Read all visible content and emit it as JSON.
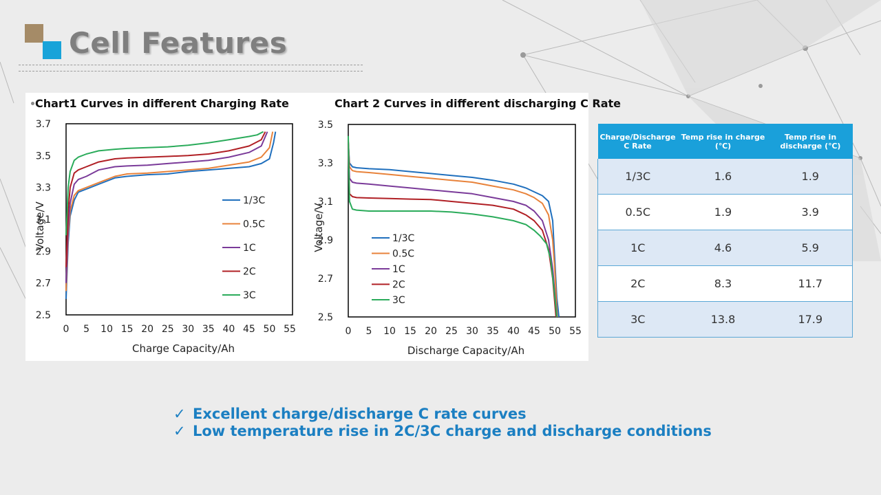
{
  "page": {
    "title": "Cell Features"
  },
  "colors": {
    "accent_blue": "#1aa0da",
    "logo_tan": "#a58b67",
    "feature_text": "#1b7fc2"
  },
  "icons": {
    "checkmark": "checkmark-icon"
  },
  "chart_data": [
    {
      "type": "line",
      "title": "Chart1  Curves in different Charging Rate",
      "xlabel": "Charge Capacity/Ah",
      "ylabel": "Voltage/V",
      "xlim": [
        0,
        55
      ],
      "ylim": [
        2.5,
        3.7
      ],
      "xticks": [
        "0",
        "5",
        "10",
        "15",
        "20",
        "25",
        "30",
        "35",
        "40",
        "45",
        "50",
        "55"
      ],
      "yticks": [
        "2.5",
        "2.7",
        "2.9",
        "3.1",
        "3.3",
        "3.5",
        "3.7"
      ],
      "legend": [
        "1/3C",
        "0.5C",
        "1C",
        "2C",
        "3C"
      ],
      "series": [
        {
          "name": "1/3C",
          "color": "#1f6fbd",
          "points": [
            [
              0,
              2.6
            ],
            [
              0.5,
              2.95
            ],
            [
              1,
              3.12
            ],
            [
              2,
              3.22
            ],
            [
              3,
              3.27
            ],
            [
              5,
              3.29
            ],
            [
              8,
              3.32
            ],
            [
              12,
              3.36
            ],
            [
              15,
              3.37
            ],
            [
              20,
              3.38
            ],
            [
              25,
              3.385
            ],
            [
              30,
              3.4
            ],
            [
              35,
              3.41
            ],
            [
              40,
              3.42
            ],
            [
              45,
              3.43
            ],
            [
              48,
              3.45
            ],
            [
              50,
              3.48
            ],
            [
              51,
              3.58
            ],
            [
              51.5,
              3.65
            ]
          ]
        },
        {
          "name": "0.5C",
          "color": "#e8823a",
          "points": [
            [
              0,
              2.65
            ],
            [
              0.5,
              3.0
            ],
            [
              1,
              3.15
            ],
            [
              2,
              3.25
            ],
            [
              3,
              3.28
            ],
            [
              5,
              3.3
            ],
            [
              8,
              3.33
            ],
            [
              12,
              3.37
            ],
            [
              15,
              3.385
            ],
            [
              20,
              3.39
            ],
            [
              25,
              3.4
            ],
            [
              30,
              3.41
            ],
            [
              35,
              3.42
            ],
            [
              40,
              3.44
            ],
            [
              45,
              3.46
            ],
            [
              48,
              3.49
            ],
            [
              50,
              3.55
            ],
            [
              50.8,
              3.65
            ]
          ]
        },
        {
          "name": "1C",
          "color": "#7a3a99",
          "points": [
            [
              0,
              2.7
            ],
            [
              0.5,
              3.05
            ],
            [
              1,
              3.2
            ],
            [
              2,
              3.32
            ],
            [
              3,
              3.35
            ],
            [
              5,
              3.37
            ],
            [
              8,
              3.41
            ],
            [
              12,
              3.43
            ],
            [
              15,
              3.435
            ],
            [
              20,
              3.44
            ],
            [
              25,
              3.45
            ],
            [
              30,
              3.46
            ],
            [
              35,
              3.47
            ],
            [
              40,
              3.49
            ],
            [
              45,
              3.52
            ],
            [
              48,
              3.56
            ],
            [
              49.5,
              3.65
            ]
          ]
        },
        {
          "name": "2C",
          "color": "#b01f24",
          "points": [
            [
              0,
              2.8
            ],
            [
              0.5,
              3.15
            ],
            [
              1,
              3.3
            ],
            [
              2,
              3.39
            ],
            [
              3,
              3.41
            ],
            [
              5,
              3.43
            ],
            [
              8,
              3.46
            ],
            [
              12,
              3.48
            ],
            [
              15,
              3.485
            ],
            [
              20,
              3.49
            ],
            [
              25,
              3.495
            ],
            [
              30,
              3.5
            ],
            [
              35,
              3.51
            ],
            [
              40,
              3.53
            ],
            [
              45,
              3.56
            ],
            [
              48,
              3.6
            ],
            [
              49,
              3.65
            ]
          ]
        },
        {
          "name": "3C",
          "color": "#2aab5a",
          "points": [
            [
              0,
              3.0
            ],
            [
              0.5,
              3.3
            ],
            [
              1,
              3.4
            ],
            [
              2,
              3.47
            ],
            [
              3,
              3.49
            ],
            [
              5,
              3.51
            ],
            [
              8,
              3.53
            ],
            [
              12,
              3.54
            ],
            [
              15,
              3.545
            ],
            [
              20,
              3.55
            ],
            [
              25,
              3.555
            ],
            [
              30,
              3.565
            ],
            [
              35,
              3.58
            ],
            [
              40,
              3.6
            ],
            [
              45,
              3.62
            ],
            [
              47,
              3.63
            ],
            [
              48.5,
              3.65
            ]
          ]
        }
      ]
    },
    {
      "type": "line",
      "title": "Chart 2  Curves in different discharging C Rate",
      "xlabel": "Discharge Capacity/Ah",
      "ylabel": "Voltage/V",
      "xlim": [
        0,
        55
      ],
      "ylim": [
        2.5,
        3.5
      ],
      "xticks": [
        "0",
        "5",
        "10",
        "15",
        "20",
        "25",
        "30",
        "35",
        "40",
        "45",
        "50",
        "55"
      ],
      "yticks": [
        "2.5",
        "2.7",
        "2.9",
        "3.1",
        "3.3",
        "3.5"
      ],
      "legend": [
        "1/3C",
        "0.5C",
        "1C",
        "2C",
        "3C"
      ],
      "series": [
        {
          "name": "1/3C",
          "color": "#1f6fbd",
          "points": [
            [
              0,
              3.41
            ],
            [
              0.3,
              3.3
            ],
            [
              1,
              3.28
            ],
            [
              2,
              3.275
            ],
            [
              5,
              3.27
            ],
            [
              10,
              3.265
            ],
            [
              15,
              3.255
            ],
            [
              20,
              3.245
            ],
            [
              25,
              3.235
            ],
            [
              30,
              3.225
            ],
            [
              35,
              3.21
            ],
            [
              40,
              3.19
            ],
            [
              43,
              3.17
            ],
            [
              45,
              3.15
            ],
            [
              47,
              3.13
            ],
            [
              48.5,
              3.1
            ],
            [
              49.5,
              3.0
            ],
            [
              50,
              2.8
            ],
            [
              50.5,
              2.6
            ],
            [
              51,
              2.5
            ]
          ]
        },
        {
          "name": "0.5C",
          "color": "#e8823a",
          "points": [
            [
              0,
              3.41
            ],
            [
              0.3,
              3.28
            ],
            [
              1,
              3.26
            ],
            [
              2,
              3.255
            ],
            [
              5,
              3.25
            ],
            [
              10,
              3.24
            ],
            [
              15,
              3.23
            ],
            [
              20,
              3.22
            ],
            [
              25,
              3.21
            ],
            [
              30,
              3.2
            ],
            [
              35,
              3.18
            ],
            [
              40,
              3.16
            ],
            [
              43,
              3.14
            ],
            [
              45,
              3.12
            ],
            [
              47,
              3.09
            ],
            [
              48.5,
              3.03
            ],
            [
              49.5,
              2.9
            ],
            [
              50,
              2.75
            ],
            [
              50.6,
              2.5
            ]
          ]
        },
        {
          "name": "1C",
          "color": "#7a3a99",
          "points": [
            [
              0,
              3.41
            ],
            [
              0.3,
              3.22
            ],
            [
              1,
              3.2
            ],
            [
              2,
              3.195
            ],
            [
              5,
              3.19
            ],
            [
              10,
              3.18
            ],
            [
              15,
              3.17
            ],
            [
              20,
              3.16
            ],
            [
              25,
              3.15
            ],
            [
              30,
              3.14
            ],
            [
              35,
              3.12
            ],
            [
              40,
              3.1
            ],
            [
              43,
              3.08
            ],
            [
              45,
              3.05
            ],
            [
              47,
              3.0
            ],
            [
              48.5,
              2.9
            ],
            [
              49.5,
              2.75
            ],
            [
              50.5,
              2.5
            ]
          ]
        },
        {
          "name": "2C",
          "color": "#b01f24",
          "points": [
            [
              0,
              3.42
            ],
            [
              0.3,
              3.14
            ],
            [
              1,
              3.125
            ],
            [
              2,
              3.12
            ],
            [
              5,
              3.118
            ],
            [
              10,
              3.115
            ],
            [
              15,
              3.112
            ],
            [
              20,
              3.11
            ],
            [
              25,
              3.1
            ],
            [
              30,
              3.09
            ],
            [
              35,
              3.08
            ],
            [
              40,
              3.06
            ],
            [
              43,
              3.03
            ],
            [
              45,
              3.0
            ],
            [
              47,
              2.95
            ],
            [
              48.5,
              2.85
            ],
            [
              49.5,
              2.7
            ],
            [
              50.3,
              2.5
            ]
          ]
        },
        {
          "name": "3C",
          "color": "#2aab5a",
          "points": [
            [
              0,
              3.44
            ],
            [
              0.3,
              3.1
            ],
            [
              1,
              3.06
            ],
            [
              2,
              3.055
            ],
            [
              5,
              3.05
            ],
            [
              10,
              3.05
            ],
            [
              15,
              3.05
            ],
            [
              20,
              3.05
            ],
            [
              25,
              3.045
            ],
            [
              30,
              3.035
            ],
            [
              35,
              3.02
            ],
            [
              40,
              3.0
            ],
            [
              43,
              2.98
            ],
            [
              45,
              2.95
            ],
            [
              46.5,
              2.92
            ],
            [
              48,
              2.88
            ],
            [
              49,
              2.8
            ],
            [
              49.8,
              2.65
            ],
            [
              50.5,
              2.5
            ]
          ]
        }
      ]
    }
  ],
  "table": {
    "headers": [
      "Charge/Discharge C Rate",
      "Temp rise in charge (℃)",
      "Temp rise in discharge  (℃)"
    ],
    "rows": [
      [
        "1/3C",
        "1.6",
        "1.9"
      ],
      [
        "0.5C",
        "1.9",
        "3.9"
      ],
      [
        "1C",
        "4.6",
        "5.9"
      ],
      [
        "2C",
        "8.3",
        "11.7"
      ],
      [
        "3C",
        "13.8",
        "17.9"
      ]
    ]
  },
  "features": [
    {
      "check": "✓",
      "text": "Excellent charge/discharge  C rate curves"
    },
    {
      "check": "✓",
      "text": "Low temperature rise in 2C/3C charge and discharge conditions"
    }
  ]
}
